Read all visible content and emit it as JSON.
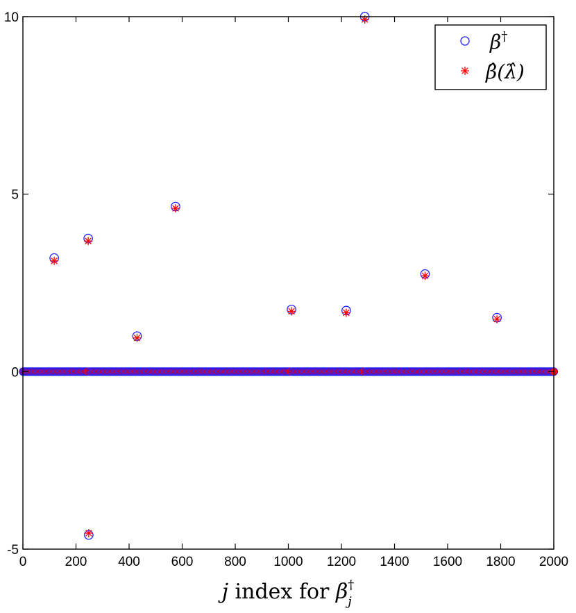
{
  "chart_data": {
    "type": "scatter",
    "title": "",
    "xlabel": "j index for β†j",
    "ylabel": "",
    "xlim": [
      0,
      2000
    ],
    "ylim": [
      -5,
      10
    ],
    "x_ticks": [
      0,
      200,
      400,
      600,
      800,
      1000,
      1200,
      1400,
      1600,
      1800,
      2000
    ],
    "y_ticks": [
      -5,
      0,
      5,
      10
    ],
    "grid": false,
    "legend_position": "top-right",
    "series": [
      {
        "name": "β†",
        "marker": "circle",
        "color": "#1f1fff",
        "points": [
          {
            "x": 118,
            "y": 3.2
          },
          {
            "x": 246,
            "y": 3.75
          },
          {
            "x": 248,
            "y": -4.6
          },
          {
            "x": 430,
            "y": 1.0
          },
          {
            "x": 575,
            "y": 4.65
          },
          {
            "x": 1012,
            "y": 1.75
          },
          {
            "x": 1218,
            "y": 1.72
          },
          {
            "x": 1288,
            "y": 10.0
          },
          {
            "x": 1515,
            "y": 2.75
          },
          {
            "x": 1786,
            "y": 1.52
          }
        ],
        "zero_elsewhere": true
      },
      {
        "name": "β̂(λ̂)",
        "marker": "asterisk",
        "color": "#ff0000",
        "points": [
          {
            "x": 118,
            "y": 3.12
          },
          {
            "x": 246,
            "y": 3.68
          },
          {
            "x": 248,
            "y": -4.55
          },
          {
            "x": 430,
            "y": 0.95
          },
          {
            "x": 575,
            "y": 4.6
          },
          {
            "x": 1012,
            "y": 1.7
          },
          {
            "x": 1218,
            "y": 1.66
          },
          {
            "x": 1288,
            "y": 9.92
          },
          {
            "x": 1515,
            "y": 2.7
          },
          {
            "x": 1786,
            "y": 1.48
          }
        ],
        "zero_elsewhere": true
      }
    ],
    "n_indices": 2000
  },
  "legend": {
    "entry_1": "β",
    "entry_1_sup": "†",
    "entry_2": "β̂(λ̂)"
  },
  "axis": {
    "xlabel_italic": "j",
    "xlabel_text": " index for ",
    "xlabel_beta": "β",
    "xlabel_sup": "†",
    "xlabel_sub": "j"
  }
}
